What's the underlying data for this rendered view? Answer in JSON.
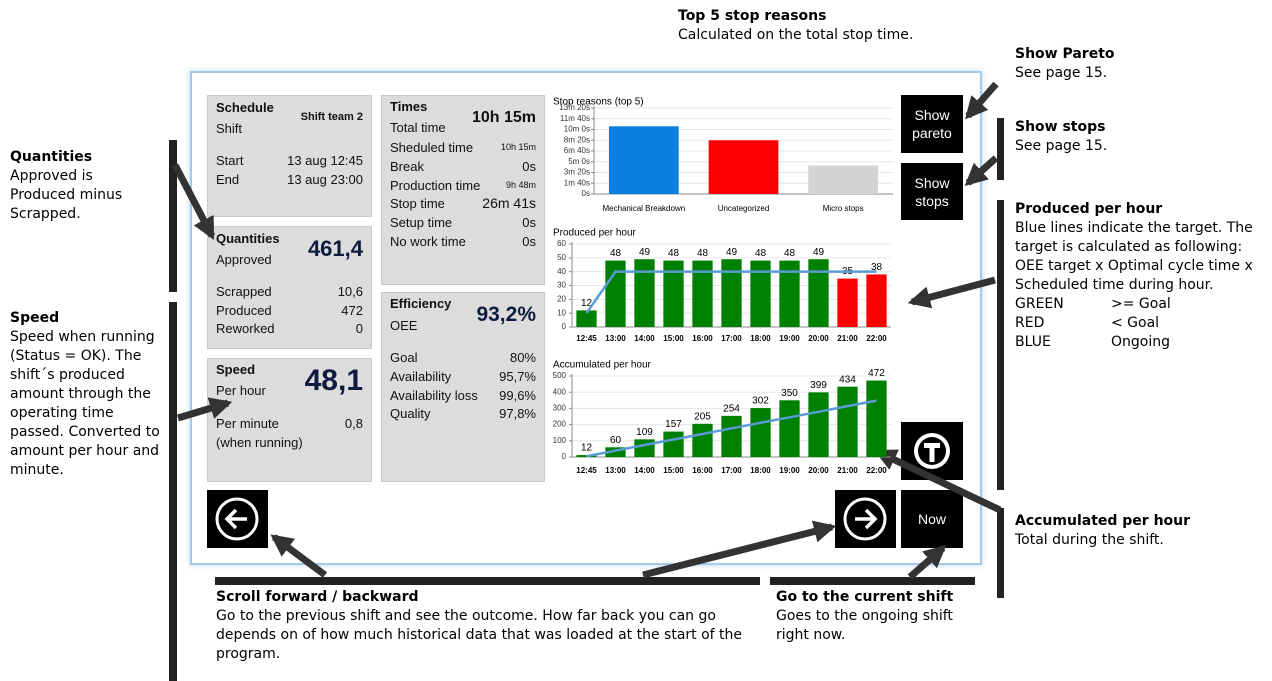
{
  "annotations": {
    "top_stop": {
      "title": "Top 5 stop reasons",
      "text": "Calculated on the total stop time."
    },
    "show_pareto": {
      "title": "Show Pareto",
      "text": "See page 15."
    },
    "show_stops": {
      "title": "Show stops",
      "text": "See page 15."
    },
    "produced": {
      "title": "Produced per hour",
      "text": "Blue lines indicate the target. The target is calculated as following: OEE target x Optimal cycle time x Scheduled time during hour.",
      "legend": [
        {
          "color": "GREEN",
          "meaning": ">= Goal"
        },
        {
          "color": "RED",
          "meaning": "< Goal"
        },
        {
          "color": "BLUE",
          "meaning": "Ongoing"
        }
      ]
    },
    "quantities": {
      "title": "Quantities",
      "text": "Approved is Produced minus Scrapped."
    },
    "speed": {
      "title": "Speed",
      "text": "Speed when running (Status = OK).  The shift´s produced amount through the operating time passed. Converted to amount per hour and minute."
    },
    "accumulated": {
      "title": "Accumulated per hour",
      "text": "Total during the shift."
    },
    "scroll": {
      "title": "Scroll forward / backward",
      "text": "Go to the previous shift and see the outcome. How far back you can go depends on of how much historical data that was loaded at the start of the program."
    },
    "current": {
      "title": "Go to the current shift",
      "text": "Goes to the ongoing shift right now."
    }
  },
  "schedule": {
    "title": "Schedule",
    "team": "Shift team 2",
    "shift_label": "Shift",
    "start_label": "Start",
    "start": "13 aug 12:45",
    "end_label": "End",
    "end": "13 aug 23:00"
  },
  "quantities": {
    "title": "Quantities",
    "approved_label": "Approved",
    "approved": "461,4",
    "rows": [
      [
        "Scrapped",
        "10,6"
      ],
      [
        "Produced",
        "472"
      ],
      [
        "Reworked",
        "0"
      ]
    ]
  },
  "speed": {
    "title": "Speed",
    "per_hour_label": "Per hour",
    "per_hour": "48,1",
    "per_minute_label": "Per minute",
    "per_minute": "0,8",
    "note": "(when running)"
  },
  "times": {
    "title": "Times",
    "rows": [
      [
        "Total time",
        "10h 15m"
      ],
      [
        "Sheduled time",
        "10h 15m"
      ],
      [
        "Break",
        "0s"
      ],
      [
        "Production time",
        "9h 48m"
      ],
      [
        "Stop time",
        "26m 41s"
      ],
      [
        "Setup time",
        "0s"
      ],
      [
        "No work time",
        "0s"
      ]
    ]
  },
  "efficiency": {
    "title": "Efficiency",
    "oee_label": "OEE",
    "oee": "93,2%",
    "rows": [
      [
        "Goal",
        "80%"
      ],
      [
        "Availability",
        "95,7%"
      ],
      [
        "Availability loss",
        "99,6%"
      ],
      [
        "Quality",
        "97,8%"
      ]
    ]
  },
  "buttons": {
    "pareto": "Show pareto",
    "stops": "Show stops",
    "now": "Now"
  },
  "charts": {
    "stop_reasons": {
      "type": "bar",
      "title": "Stop reasons (top 5)",
      "categories": [
        "Mechanical Breakdown",
        "Uncategorized",
        "Micro stops"
      ],
      "values": [
        630,
        500,
        265
      ],
      "colors": [
        "#0a7fe0",
        "#ff0000",
        "#d3d3d3"
      ],
      "ylim": [
        0,
        800
      ],
      "yticks": [
        {
          "value": 0,
          "label": "0s"
        },
        {
          "value": 100,
          "label": "1m 40s"
        },
        {
          "value": 200,
          "label": "3m 20s"
        },
        {
          "value": 300,
          "label": "5m 0s"
        },
        {
          "value": 400,
          "label": "6m 40s"
        },
        {
          "value": 500,
          "label": "8m 20s"
        },
        {
          "value": 600,
          "label": "10m 0s"
        },
        {
          "value": 700,
          "label": "11m 40s"
        },
        {
          "value": 800,
          "label": "13m 20s"
        }
      ],
      "grid": true
    },
    "produced": {
      "type": "bar",
      "title": "Produced per hour",
      "categories": [
        "12:45",
        "13:00",
        "14:00",
        "15:00",
        "16:00",
        "17:00",
        "18:00",
        "19:00",
        "20:00",
        "21:00",
        "22:00"
      ],
      "values": [
        12,
        48,
        49,
        48,
        48,
        49,
        48,
        48,
        49,
        35,
        38
      ],
      "colors": [
        "#008000",
        "#008000",
        "#008000",
        "#008000",
        "#008000",
        "#008000",
        "#008000",
        "#008000",
        "#008000",
        "#ff0000",
        "#ff0000"
      ],
      "target": [
        10,
        40,
        40,
        40,
        40,
        40,
        40,
        40,
        40,
        40,
        40
      ],
      "target_color": "#5b9bd5",
      "ylim": [
        0,
        60
      ],
      "yticks": [
        0,
        10,
        20,
        30,
        40,
        50,
        60
      ],
      "grid": true
    },
    "accumulated": {
      "type": "bar",
      "title": "Accumulated per hour",
      "categories": [
        "12:45",
        "13:00",
        "14:00",
        "15:00",
        "16:00",
        "17:00",
        "18:00",
        "19:00",
        "20:00",
        "21:00",
        "22:00"
      ],
      "values": [
        12,
        60,
        109,
        157,
        205,
        254,
        302,
        350,
        399,
        434,
        472
      ],
      "colors": [
        "#008000",
        "#008000",
        "#008000",
        "#008000",
        "#008000",
        "#008000",
        "#008000",
        "#008000",
        "#008000",
        "#008000",
        "#008000"
      ],
      "target": [
        5,
        39,
        74,
        108,
        142,
        177,
        211,
        245,
        279,
        314,
        348
      ],
      "target_color": "#5b9bd5",
      "ylim": [
        0,
        500
      ],
      "yticks": [
        0,
        100,
        200,
        300,
        400,
        500
      ],
      "grid": true
    }
  }
}
